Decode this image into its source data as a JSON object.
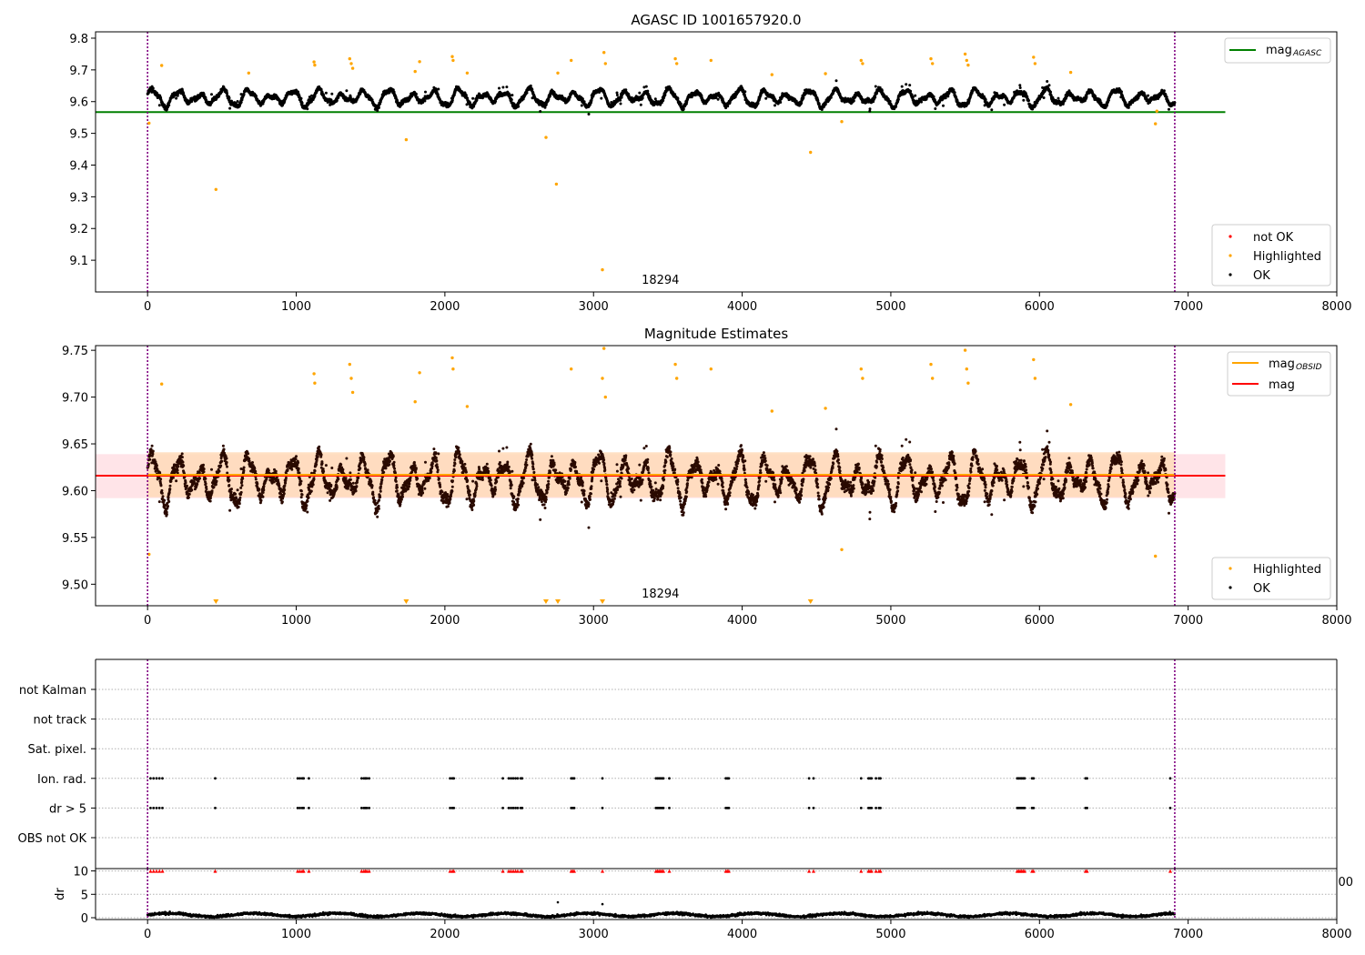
{
  "chart_data": [
    {
      "type": "scatter",
      "title": "AGASC ID 1001657920.0",
      "xlim": [
        -350,
        8000
      ],
      "ylim": [
        9.0,
        9.82
      ],
      "xticks": [
        0,
        1000,
        2000,
        3000,
        4000,
        5000,
        6000,
        7000,
        8000
      ],
      "xtick_labels": [
        "0",
        "1000",
        "2000",
        "3000",
        "4000",
        "5000",
        "6000",
        "7000",
        "8000"
      ],
      "yticks": [
        9.1,
        9.2,
        9.3,
        9.4,
        9.5,
        9.6,
        9.7,
        9.8
      ],
      "ytick_labels": [
        "9.1",
        "9.2",
        "9.3",
        "9.4",
        "9.5",
        "9.6",
        "9.7",
        "9.8"
      ],
      "obsid_boundaries": [
        0,
        6910
      ],
      "annotations": [
        {
          "text": "18294",
          "x": 3450
        }
      ],
      "reference_lines": [
        {
          "name": "mag_AGASC",
          "legend_main": "mag",
          "legend_sub": "AGASC",
          "y": 9.567,
          "x_range": [
            -350,
            7250
          ],
          "color": "#008000"
        }
      ],
      "legend_lines_position": "upper right",
      "legend_points_position": "lower right",
      "series": [
        {
          "name": "not OK",
          "color": "#ff0000",
          "x": [],
          "y": []
        },
        {
          "name": "Highlighted",
          "color": "#ffa500",
          "x": [
            10,
            95,
            460,
            680,
            1120,
            1125,
            1360,
            1370,
            1380,
            1740,
            1800,
            1830,
            2050,
            2055,
            2150,
            2680,
            2750,
            2760,
            2850,
            3060,
            3070,
            3080,
            3550,
            3560,
            3790,
            4200,
            4460,
            4560,
            4670,
            4800,
            4810,
            5270,
            5280,
            5500,
            5510,
            5520,
            5960,
            5970,
            6210,
            6780,
            6790
          ],
          "y": [
            9.532,
            9.714,
            9.323,
            9.69,
            9.725,
            9.715,
            9.735,
            9.72,
            9.705,
            9.48,
            9.695,
            9.726,
            9.742,
            9.73,
            9.69,
            9.487,
            9.34,
            9.69,
            9.73,
            9.07,
            9.755,
            9.72,
            9.735,
            9.72,
            9.73,
            9.685,
            9.44,
            9.688,
            9.537,
            9.73,
            9.72,
            9.735,
            9.72,
            9.75,
            9.73,
            9.715,
            9.74,
            9.72,
            9.692,
            9.53,
            9.57
          ]
        },
        {
          "name": "OK",
          "color": "#000000",
          "x": [],
          "y": []
        }
      ]
    },
    {
      "type": "scatter",
      "title": "Magnitude Estimates",
      "xlim": [
        -350,
        8000
      ],
      "ylim": [
        9.477,
        9.755
      ],
      "xticks": [
        0,
        1000,
        2000,
        3000,
        4000,
        5000,
        6000,
        7000,
        8000
      ],
      "xtick_labels": [
        "0",
        "1000",
        "2000",
        "3000",
        "4000",
        "5000",
        "6000",
        "7000",
        "8000"
      ],
      "yticks": [
        9.5,
        9.55,
        9.6,
        9.65,
        9.7,
        9.75
      ],
      "ytick_labels": [
        "9.50",
        "9.55",
        "9.60",
        "9.65",
        "9.70",
        "9.75"
      ],
      "obsid_boundaries": [
        0,
        6910
      ],
      "annotations": [
        {
          "text": "18294",
          "x": 3450
        }
      ],
      "reference_lines": [
        {
          "name": "mag_OBSID",
          "legend_main": "mag",
          "legend_sub": "OBSID",
          "y": 9.617,
          "x_range": [
            0,
            6910
          ],
          "color": "#ffa500",
          "band": [
            9.593,
            9.641
          ],
          "band_color": "#ffdab9"
        },
        {
          "name": "mag",
          "legend_main": "mag",
          "legend_sub": "",
          "y": 9.616,
          "x_range": [
            -350,
            7250
          ],
          "color": "#ff0000",
          "band": [
            9.592,
            9.639
          ],
          "band_color": "#ffe4e8"
        }
      ],
      "legend_lines_position": "upper right",
      "legend_points_position": "lower right",
      "series": [
        {
          "name": "Highlighted",
          "color": "#ffa500",
          "x": [
            10,
            95,
            1120,
            1125,
            1360,
            1370,
            1380,
            1800,
            1830,
            2050,
            2055,
            2150,
            2850,
            3060,
            3070,
            3080,
            3550,
            3560,
            3790,
            4200,
            4560,
            4670,
            4800,
            4810,
            5270,
            5280,
            5500,
            5510,
            5520,
            5960,
            5970,
            6210,
            6780
          ],
          "y": [
            9.532,
            9.714,
            9.725,
            9.715,
            9.735,
            9.72,
            9.705,
            9.695,
            9.726,
            9.742,
            9.73,
            9.69,
            9.73,
            9.72,
            9.752,
            9.7,
            9.735,
            9.72,
            9.73,
            9.685,
            9.688,
            9.537,
            9.73,
            9.72,
            9.735,
            9.72,
            9.75,
            9.73,
            9.715,
            9.74,
            9.72,
            9.692,
            9.53
          ]
        },
        {
          "name": "OK",
          "color": "#000000",
          "x": [],
          "y": []
        }
      ],
      "below_range_markers": {
        "color": "#ffa500",
        "x": [
          460,
          1740,
          2680,
          2760,
          3060,
          4460
        ]
      }
    },
    {
      "type": "scatter",
      "title": "",
      "xlim": [
        -350,
        8000
      ],
      "obsid_boundaries": [
        0,
        6910
      ],
      "categories": [
        "not Kalman",
        "not track",
        "Sat. pixel.",
        "Ion. rad.",
        "dr > 5",
        "OBS not OK"
      ],
      "flag_times": [
        20,
        40,
        60,
        80,
        100,
        455,
        1010,
        1025,
        1040,
        1050,
        1085,
        1440,
        1455,
        1465,
        1475,
        1490,
        2035,
        2050,
        2060,
        2390,
        2430,
        2445,
        2460,
        2475,
        2490,
        2510,
        2520,
        2850,
        2860,
        2870,
        3060,
        3420,
        3430,
        3440,
        3450,
        3460,
        3470,
        3510,
        3890,
        3900,
        3910,
        4450,
        4480,
        4800,
        4850,
        4860,
        4870,
        4900,
        4920,
        4930,
        5850,
        5860,
        5870,
        5880,
        5890,
        5900,
        5950,
        5960,
        6310,
        6320,
        6880
      ],
      "flag_rows": [
        "Ion. rad.",
        "dr > 5"
      ],
      "dr_panel": {
        "ylabel": "dr",
        "yticks": [
          0,
          5,
          10
        ],
        "ytick_labels": [
          "0",
          "5",
          "10"
        ],
        "ylim": [
          0,
          10.5
        ],
        "clipped_color": "#ff0000",
        "clipped_value": 10,
        "outliers": {
          "x": [
            2760,
            3060
          ],
          "y": [
            3.3,
            2.9
          ]
        },
        "stray_tick_label": "00"
      },
      "xticks": [
        0,
        1000,
        2000,
        3000,
        4000,
        5000,
        6000,
        7000,
        8000
      ],
      "xtick_labels": [
        "0",
        "1000",
        "2000",
        "3000",
        "4000",
        "5000",
        "6000",
        "7000",
        "8000"
      ]
    }
  ]
}
